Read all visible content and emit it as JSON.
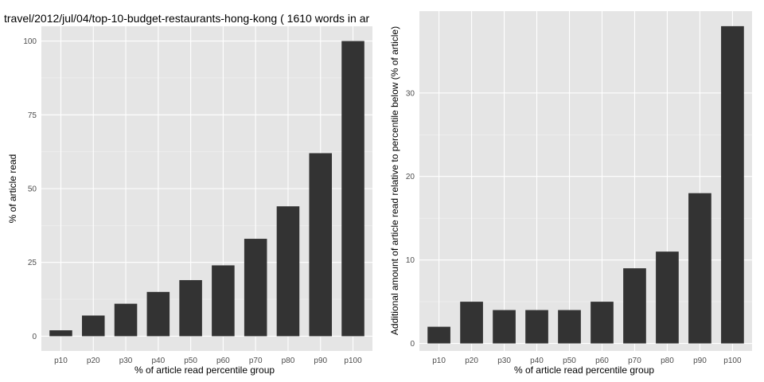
{
  "colors": {
    "panel_background": "#e5e5e5",
    "grid_major": "#ffffff",
    "grid_minor": "#f2f2f2",
    "bar_fill": "#333333",
    "tick_text": "#4d4d4d"
  },
  "chart_data": [
    {
      "type": "bar",
      "title": "travel/2012/jul/04/top-10-budget-restaurants-hong-kong ( 1610 words in ar",
      "xlabel": "% of article read percentile group",
      "ylabel": "% of article read",
      "categories": [
        "p10",
        "p20",
        "p30",
        "p40",
        "p50",
        "p60",
        "p70",
        "p80",
        "p90",
        "p100"
      ],
      "values": [
        2,
        7,
        11,
        15,
        19,
        24,
        33,
        44,
        62,
        100
      ],
      "ylim": [
        -5,
        105
      ],
      "yticks": [
        0,
        25,
        50,
        75,
        100
      ],
      "grid": true
    },
    {
      "type": "bar",
      "title": "",
      "xlabel": "% of article read percentile group",
      "ylabel": "Additional amount of article read relative to percentile below (% of article)",
      "categories": [
        "p10",
        "p20",
        "p30",
        "p40",
        "p50",
        "p60",
        "p70",
        "p80",
        "p90",
        "p100"
      ],
      "values": [
        2,
        5,
        4,
        4,
        4,
        5,
        9,
        11,
        18,
        38
      ],
      "ylim": [
        -0.9,
        39.8
      ],
      "yticks": [
        0,
        10,
        20,
        30
      ],
      "grid": true
    }
  ]
}
